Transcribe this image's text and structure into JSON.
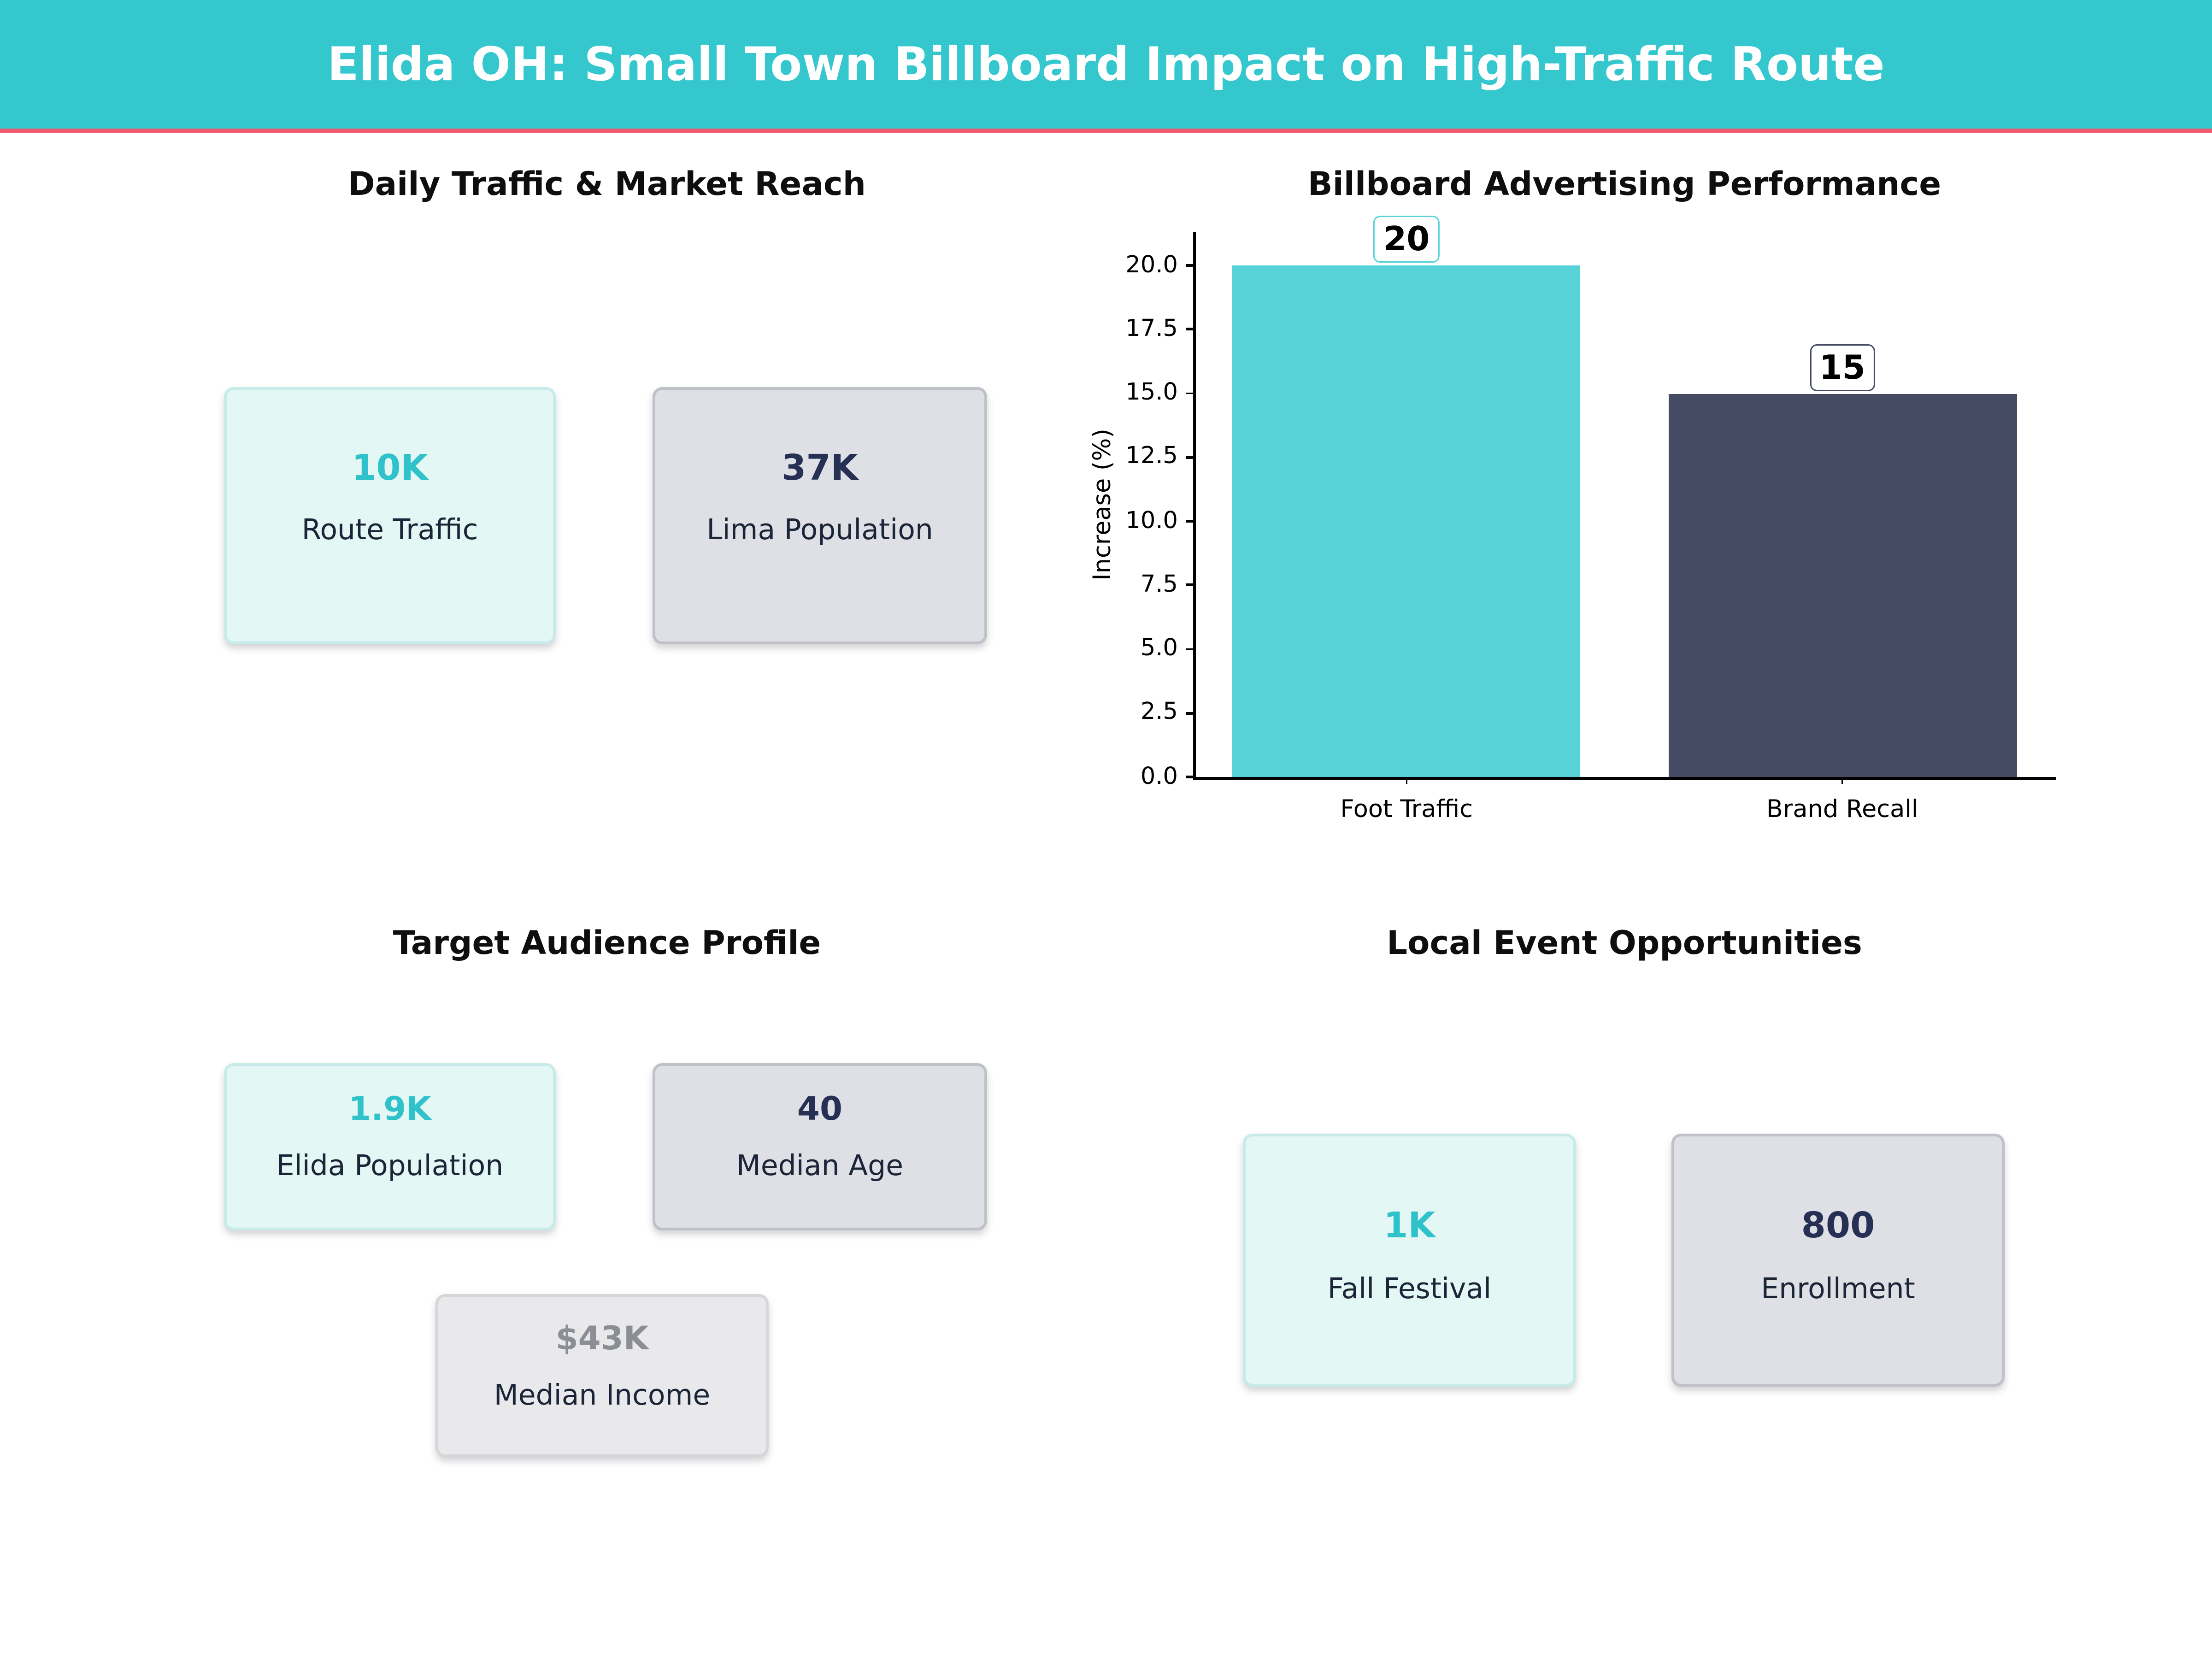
{
  "header": {
    "title": "Elida OH: Small Town Billboard Impact on High-Traffic Route"
  },
  "colors": {
    "header_bg": "#34c8ce",
    "accent_line": "#ef5a70",
    "teal_accent": "#2fc2ca",
    "navy": "#262f54",
    "bar_teal": "#57d3d8",
    "bar_navy": "#454b63"
  },
  "panels": {
    "traffic": {
      "title": "Daily Traffic & Market Reach",
      "cards": [
        {
          "value": "10K",
          "label": "Route Traffic"
        },
        {
          "value": "37K",
          "label": "Lima Population"
        }
      ]
    },
    "performance": {
      "title": "Billboard Advertising Performance"
    },
    "audience": {
      "title": "Target Audience Profile",
      "cards": [
        {
          "value": "1.9K",
          "label": "Elida Population"
        },
        {
          "value": "40",
          "label": "Median Age"
        },
        {
          "value": "$43K",
          "label": "Median Income"
        }
      ]
    },
    "events": {
      "title": "Local Event Opportunities",
      "cards": [
        {
          "value": "1K",
          "label": "Fall Festival"
        },
        {
          "value": "800",
          "label": "Enrollment"
        }
      ]
    }
  },
  "chart_data": {
    "type": "bar",
    "title": "Billboard Advertising Performance",
    "categories": [
      "Foot Traffic",
      "Brand Recall"
    ],
    "values": [
      20,
      15
    ],
    "value_labels": [
      "20",
      "15"
    ],
    "bar_colors": [
      "#57d3d8",
      "#454b63"
    ],
    "value_label_border_colors": [
      "#57d3d8",
      "#454b63"
    ],
    "ylabel": "Increase (%)",
    "ylim": [
      0,
      21.3
    ],
    "yticks": [
      0,
      2.5,
      5,
      7.5,
      10,
      12.5,
      15,
      17.5,
      20
    ],
    "ytick_decimals": 1,
    "grid": false,
    "legend": false
  }
}
